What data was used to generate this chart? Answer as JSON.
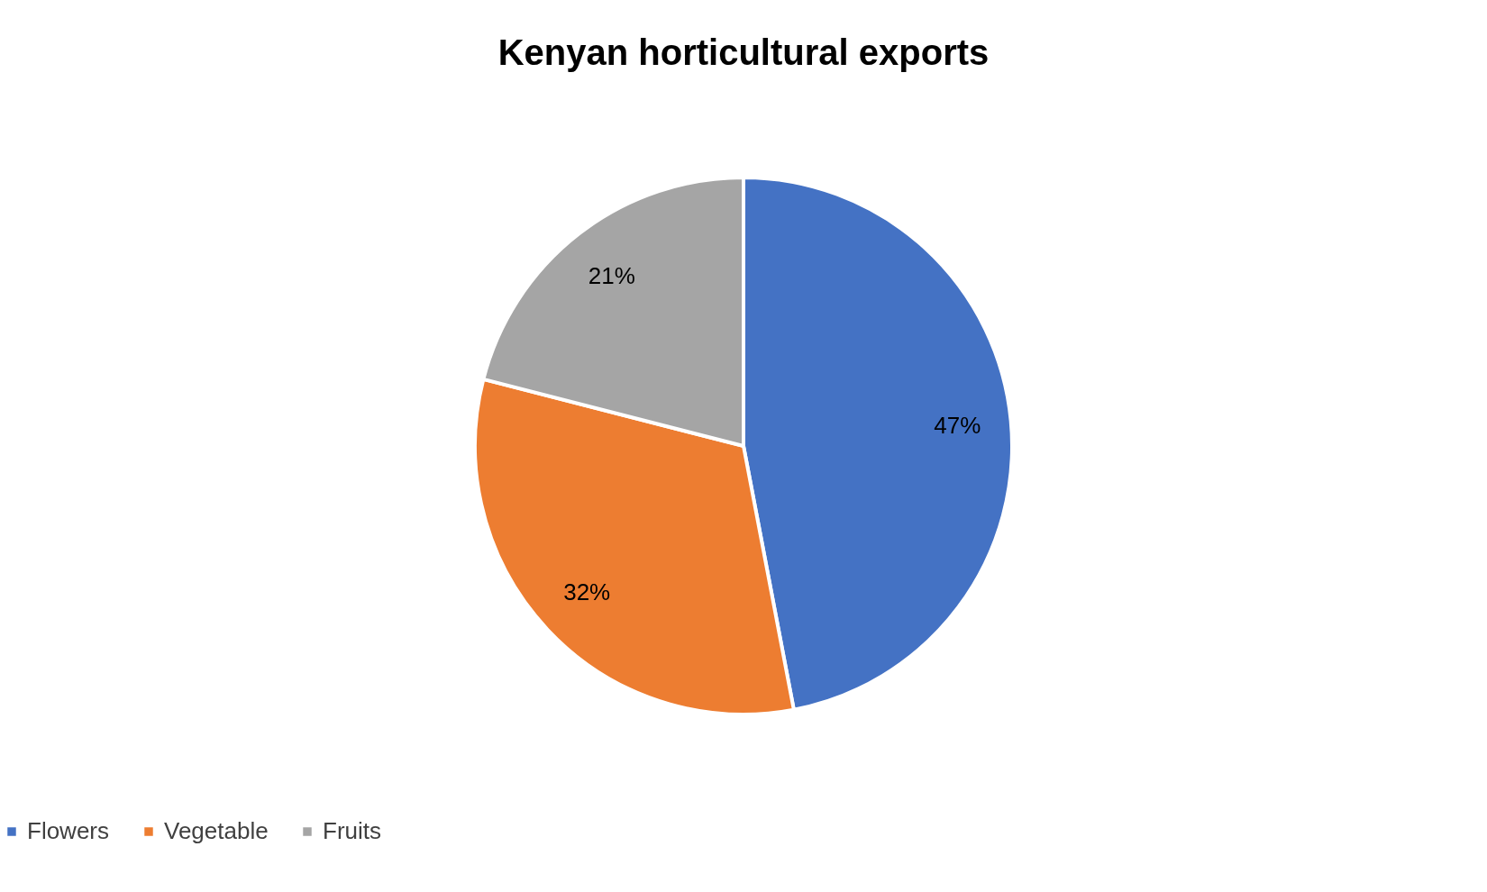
{
  "chart_data": {
    "type": "pie",
    "title": "Kenyan horticultural exports",
    "categories": [
      "Flowers",
      "Vegetable",
      "Fruits"
    ],
    "values": [
      47,
      32,
      21
    ],
    "value_labels": [
      "47%",
      "32%",
      "21%"
    ],
    "colors": [
      "#4472c4",
      "#ed7d31",
      "#a5a5a5"
    ],
    "legend": "bottom"
  }
}
